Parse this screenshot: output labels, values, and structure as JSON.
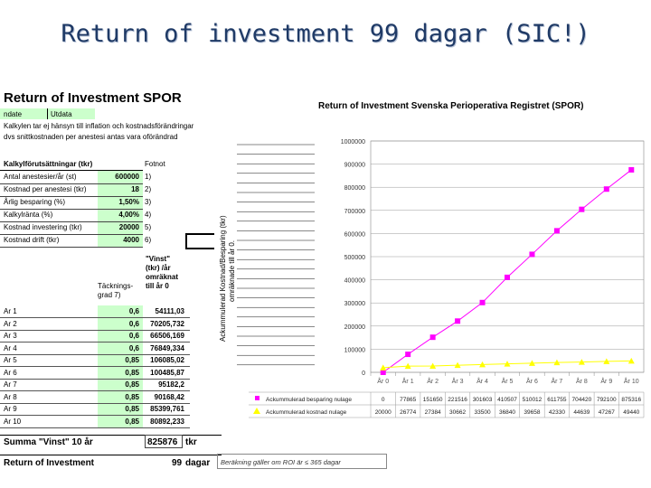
{
  "slide": {
    "title": "Return of investment 99 dagar (SIC!)"
  },
  "sheet": {
    "title": "Return of Investment SPOR",
    "header_cells": [
      "ndate",
      "Utdata"
    ],
    "desc1": "Kalkylen tar ej hänsyn till inflation och kostnadsförändringar",
    "desc2": "dvs snittkostnaden per anestesi antas vara oförändrad",
    "assump_header": "Kalkylförutsättningar (tkr)",
    "fotnot": "Fotnot",
    "assumptions": [
      {
        "label": "Antal anestesier/år (st)",
        "value": "600000",
        "note": "1)"
      },
      {
        "label": "Kostnad per anestesi (tkr)",
        "value": "18",
        "note": "2)"
      },
      {
        "label": "Årlig besparing (%)",
        "value": "1,50%",
        "note": "3)"
      },
      {
        "label": "Kalkylränta (%)",
        "value": "4,00%",
        "note": "4)"
      },
      {
        "label": "Kostnad investering (tkr)",
        "value": "20000",
        "note": "5)"
      },
      {
        "label": "Kostnad drift (tkr)",
        "value": "4000",
        "note": "6)"
      }
    ],
    "vinst_header": [
      "\"Vinst\"",
      "(tkr) /år",
      "omräknat",
      "till år 0"
    ],
    "tg_header": [
      "Täcknings-",
      "grad"
    ],
    "tg_note": "7)",
    "years": [
      {
        "label": "Ar 1",
        "tg": "0,6",
        "vinst": "54111,03"
      },
      {
        "label": "Ar 2",
        "tg": "0,6",
        "vinst": "70205,732"
      },
      {
        "label": "Ar 3",
        "tg": "0,6",
        "vinst": "66506,169"
      },
      {
        "label": "Ar 4",
        "tg": "0,6",
        "vinst": "76849,334"
      },
      {
        "label": "Ar 5",
        "tg": "0,85",
        "vinst": "106085,02"
      },
      {
        "label": "Ar 6",
        "tg": "0,85",
        "vinst": "100485,87"
      },
      {
        "label": "Ar 7",
        "tg": "0,85",
        "vinst": "95182,2"
      },
      {
        "label": "Ar 8",
        "tg": "0,85",
        "vinst": "90168,42"
      },
      {
        "label": "Ar 9",
        "tg": "0,85",
        "vinst": "85399,761"
      },
      {
        "label": "Ar 10",
        "tg": "0,85",
        "vinst": "80892,233"
      }
    ],
    "summa_label": "Summa \"Vinst\" 10 år",
    "summa_value": "825876",
    "summa_unit": "tkr",
    "roi_label": "Return of Investment",
    "roi_value": "99",
    "roi_unit": "dagar",
    "roi_note": "Beräkning gäller om ROI är ≤ 365 dagar"
  },
  "chart_data": {
    "type": "line",
    "title": "Return of Investment Svenska Perioperativa Registret (SPOR)",
    "ylabel": [
      "Ackummulerad Kostnad/Besparing (tkr)",
      "omräknade till år 0."
    ],
    "ylim": [
      0,
      1000000
    ],
    "yticks": [
      "0",
      "100000",
      "200000",
      "300000",
      "400000",
      "500000",
      "600000",
      "700000",
      "800000",
      "900000",
      "1000000"
    ],
    "categories": [
      "År 0",
      "År 1",
      "År 2",
      "År 3",
      "År 4",
      "År 5",
      "År 6",
      "År 7",
      "År 8",
      "År 9",
      "År 10"
    ],
    "series": [
      {
        "name": "Ackummulerad besparing nulage",
        "color": "#ff00ff",
        "values": [
          0,
          77865,
          151650,
          221516,
          301603,
          410507,
          510012,
          611755,
          704420,
          792100,
          875316
        ],
        "row_labels": [
          "0",
          "77865",
          "151650",
          "221516",
          "301603",
          "410507",
          "510012",
          "611755",
          "704420",
          "792100",
          "875316"
        ]
      },
      {
        "name": "Ackummulerad kostnad nulage",
        "color": "#ffff00",
        "values": [
          20000,
          26774,
          27384,
          30662,
          33500,
          36840,
          39658,
          42330,
          44639,
          47267,
          49440
        ],
        "row_labels": [
          "20000",
          "26774",
          "27384",
          "30662",
          "33500",
          "36840",
          "39658",
          "42330",
          "44639",
          "47267",
          "49440"
        ]
      }
    ]
  }
}
